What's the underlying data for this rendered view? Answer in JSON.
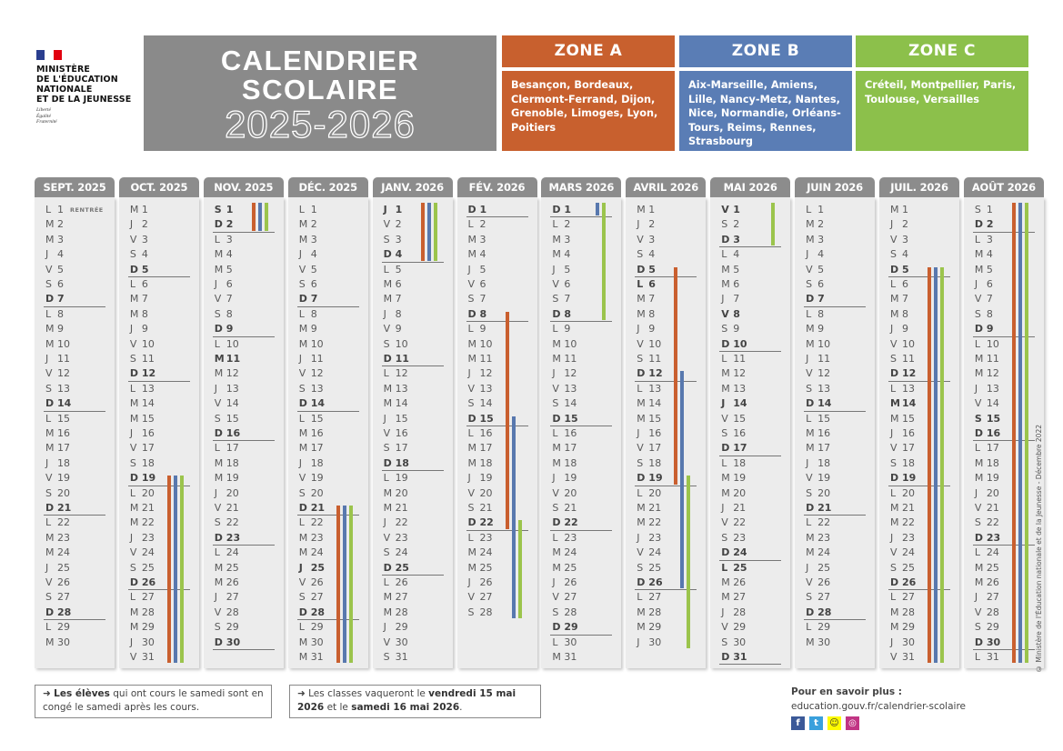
{
  "ministry": {
    "lines": [
      "MINISTÈRE",
      "DE L'ÉDUCATION",
      "NATIONALE",
      "ET DE LA JEUNESSE"
    ],
    "motto": [
      "Liberté",
      "Égalité",
      "Fraternité"
    ]
  },
  "title": {
    "line1": "CALENDRIER",
    "line2": "SCOLAIRE",
    "years": "2025-2026"
  },
  "colors": {
    "zone_a": "#c8602e",
    "zone_b": "#5a7db5",
    "zone_c": "#8cc04b",
    "bar_a": "#c95f2f",
    "bar_b": "#5878ae",
    "bar_c": "#9bc44c"
  },
  "zones": [
    {
      "id": "a",
      "label": "ZONE A",
      "cities": "Besançon, Bordeaux, Clermont-Ferrand, Dijon, Grenoble, Limoges, Lyon, Poitiers"
    },
    {
      "id": "b",
      "label": "ZONE B",
      "cities": "Aix-Marseille, Amiens, Lille, Nancy-Metz, Nantes, Nice, Normandie, Orléans-Tours, Reims, Rennes, Strasbourg"
    },
    {
      "id": "c",
      "label": "ZONE C",
      "cities": "Créteil, Montpellier, Paris, Toulouse, Versailles"
    }
  ],
  "rentree_label": "RENTRÉE",
  "months": [
    {
      "label": "SEPT. 2025",
      "holidays": [],
      "bars": [],
      "days": [
        "L 1",
        "M 2",
        "M 3",
        "J 4",
        "V 5",
        "S 6",
        "D 7",
        "L 8",
        "M 9",
        "M 10",
        "J 11",
        "V 12",
        "S 13",
        "D 14",
        "L 15",
        "M 16",
        "M 17",
        "J 18",
        "V 19",
        "S 20",
        "D 21",
        "L 22",
        "M 23",
        "M 24",
        "J 25",
        "V 26",
        "S 27",
        "D 28",
        "L 29",
        "M 30"
      ]
    },
    {
      "label": "OCT. 2025",
      "holidays": [],
      "bars": [
        {
          "zone": "a",
          "from": 19,
          "to": 31
        },
        {
          "zone": "b",
          "from": 19,
          "to": 31
        },
        {
          "zone": "c",
          "from": 19,
          "to": 31
        }
      ],
      "days": [
        "M 1",
        "J 2",
        "V 3",
        "S 4",
        "D 5",
        "L 6",
        "M 7",
        "M 8",
        "J 9",
        "V 10",
        "S 11",
        "D 12",
        "L 13",
        "M 14",
        "M 15",
        "J 16",
        "V 17",
        "S 18",
        "D 19",
        "L 20",
        "M 21",
        "M 22",
        "J 23",
        "V 24",
        "S 25",
        "D 26",
        "L 27",
        "M 28",
        "M 29",
        "J 30",
        "V 31"
      ]
    },
    {
      "label": "NOV. 2025",
      "holidays": [
        1,
        11
      ],
      "bars": [
        {
          "zone": "a",
          "from": 1,
          "to": 2
        },
        {
          "zone": "b",
          "from": 1,
          "to": 2
        },
        {
          "zone": "c",
          "from": 1,
          "to": 2
        }
      ],
      "days": [
        "S 1",
        "D 2",
        "L 3",
        "M 4",
        "M 5",
        "J 6",
        "V 7",
        "S 8",
        "D 9",
        "L 10",
        "M 11",
        "M 12",
        "J 13",
        "V 14",
        "S 15",
        "D 16",
        "L 17",
        "M 18",
        "M 19",
        "J 20",
        "V 21",
        "S 22",
        "D 23",
        "L 24",
        "M 25",
        "M 26",
        "J 27",
        "V 28",
        "S 29",
        "D 30"
      ]
    },
    {
      "label": "DÉC. 2025",
      "holidays": [
        25
      ],
      "bars": [
        {
          "zone": "a",
          "from": 21,
          "to": 31
        },
        {
          "zone": "b",
          "from": 21,
          "to": 31
        },
        {
          "zone": "c",
          "from": 21,
          "to": 31
        }
      ],
      "days": [
        "L 1",
        "M 2",
        "M 3",
        "J 4",
        "V 5",
        "S 6",
        "D 7",
        "L 8",
        "M 9",
        "M 10",
        "J 11",
        "V 12",
        "S 13",
        "D 14",
        "L 15",
        "M 16",
        "M 17",
        "J 18",
        "V 19",
        "S 20",
        "D 21",
        "L 22",
        "M 23",
        "M 24",
        "J 25",
        "V 26",
        "S 27",
        "D 28",
        "L 29",
        "M 30",
        "M 31"
      ]
    },
    {
      "label": "JANV. 2026",
      "holidays": [
        1
      ],
      "bars": [
        {
          "zone": "a",
          "from": 1,
          "to": 4
        },
        {
          "zone": "b",
          "from": 1,
          "to": 4
        },
        {
          "zone": "c",
          "from": 1,
          "to": 4
        }
      ],
      "days": [
        "J 1",
        "V 2",
        "S 3",
        "D 4",
        "L 5",
        "M 6",
        "M 7",
        "J 8",
        "V 9",
        "S 10",
        "D 11",
        "L 12",
        "M 13",
        "M 14",
        "J 15",
        "V 16",
        "S 17",
        "D 18",
        "L 19",
        "M 20",
        "M 21",
        "J 22",
        "V 23",
        "S 24",
        "D 25",
        "L 26",
        "M 27",
        "M 28",
        "J 29",
        "V 30",
        "S 31"
      ]
    },
    {
      "label": "FÉV. 2026",
      "holidays": [],
      "bars": [
        {
          "zone": "a",
          "from": 8,
          "to": 22
        },
        {
          "zone": "b",
          "from": 15,
          "to": 28
        },
        {
          "zone": "c",
          "from": 22,
          "to": 28
        }
      ],
      "days": [
        "D 1",
        "L 2",
        "M 3",
        "M 4",
        "J 5",
        "V 6",
        "S 7",
        "D 8",
        "L 9",
        "M 10",
        "M 11",
        "J 12",
        "V 13",
        "S 14",
        "D 15",
        "L 16",
        "M 17",
        "M 18",
        "J 19",
        "V 20",
        "S 21",
        "D 22",
        "L 23",
        "M 24",
        "M 25",
        "J 26",
        "V 27",
        "S 28"
      ]
    },
    {
      "label": "MARS 2026",
      "holidays": [],
      "bars": [
        {
          "zone": "b",
          "from": 1,
          "to": 1
        },
        {
          "zone": "c",
          "from": 1,
          "to": 8
        }
      ],
      "days": [
        "D 1",
        "L 2",
        "M 3",
        "M 4",
        "J 5",
        "V 6",
        "S 7",
        "D 8",
        "L 9",
        "M 10",
        "M 11",
        "J 12",
        "V 13",
        "S 14",
        "D 15",
        "L 16",
        "M 17",
        "M 18",
        "J 19",
        "V 20",
        "S 21",
        "D 22",
        "L 23",
        "M 24",
        "M 25",
        "J 26",
        "V 27",
        "S 28",
        "D 29",
        "L 30",
        "M 31"
      ]
    },
    {
      "label": "AVRIL 2026",
      "holidays": [
        6
      ],
      "bars": [
        {
          "zone": "a",
          "from": 5,
          "to": 19
        },
        {
          "zone": "b",
          "from": 12,
          "to": 26
        },
        {
          "zone": "c",
          "from": 19,
          "to": 30
        }
      ],
      "days": [
        "M 1",
        "J 2",
        "V 3",
        "S 4",
        "D 5",
        "L 6",
        "M 7",
        "M 8",
        "J 9",
        "V 10",
        "S 11",
        "D 12",
        "L 13",
        "M 14",
        "M 15",
        "J 16",
        "V 17",
        "S 18",
        "D 19",
        "L 20",
        "M 21",
        "M 22",
        "J 23",
        "V 24",
        "S 25",
        "D 26",
        "L 27",
        "M 28",
        "M 29",
        "J 30"
      ]
    },
    {
      "label": "MAI 2026",
      "holidays": [
        1,
        8,
        14,
        25
      ],
      "bars": [
        {
          "zone": "c",
          "from": 1,
          "to": 3
        }
      ],
      "days": [
        "V 1",
        "S 2",
        "D 3",
        "L 4",
        "M 5",
        "M 6",
        "J 7",
        "V 8",
        "S 9",
        "D 10",
        "L 11",
        "M 12",
        "M 13",
        "J 14",
        "V 15",
        "S 16",
        "D 17",
        "L 18",
        "M 19",
        "M 20",
        "J 21",
        "V 22",
        "S 23",
        "D 24",
        "L 25",
        "M 26",
        "M 27",
        "J 28",
        "V 29",
        "S 30",
        "D 31"
      ]
    },
    {
      "label": "JUIN 2026",
      "holidays": [],
      "bars": [],
      "days": [
        "L 1",
        "M 2",
        "M 3",
        "J 4",
        "V 5",
        "S 6",
        "D 7",
        "L 8",
        "M 9",
        "M 10",
        "J 11",
        "V 12",
        "S 13",
        "D 14",
        "L 15",
        "M 16",
        "M 17",
        "J 18",
        "V 19",
        "S 20",
        "D 21",
        "L 22",
        "M 23",
        "M 24",
        "J 25",
        "V 26",
        "S 27",
        "D 28",
        "L 29",
        "M 30"
      ]
    },
    {
      "label": "JUIL. 2026",
      "holidays": [
        14
      ],
      "bars": [
        {
          "zone": "a",
          "from": 5,
          "to": 31
        },
        {
          "zone": "b",
          "from": 5,
          "to": 31
        },
        {
          "zone": "c",
          "from": 5,
          "to": 31
        }
      ],
      "days": [
        "M 1",
        "J 2",
        "V 3",
        "S 4",
        "D 5",
        "L 6",
        "M 7",
        "M 8",
        "J 9",
        "V 10",
        "S 11",
        "D 12",
        "L 13",
        "M 14",
        "M 15",
        "J 16",
        "V 17",
        "S 18",
        "D 19",
        "L 20",
        "M 21",
        "M 22",
        "J 23",
        "V 24",
        "S 25",
        "D 26",
        "L 27",
        "M 28",
        "M 29",
        "J 30",
        "V 31"
      ]
    },
    {
      "label": "AOÛT 2026",
      "holidays": [
        15
      ],
      "bars": [
        {
          "zone": "a",
          "from": 1,
          "to": 31
        },
        {
          "zone": "b",
          "from": 1,
          "to": 31
        },
        {
          "zone": "c",
          "from": 1,
          "to": 31
        }
      ],
      "days": [
        "S 1",
        "D 2",
        "L 3",
        "M 4",
        "M 5",
        "J 6",
        "V 7",
        "S 8",
        "D 9",
        "L 10",
        "M 11",
        "M 12",
        "J 13",
        "V 14",
        "S 15",
        "D 16",
        "L 17",
        "M 18",
        "M 19",
        "J 20",
        "V 21",
        "S 22",
        "D 23",
        "L 24",
        "M 25",
        "M 26",
        "J 27",
        "V 28",
        "S 29",
        "D 30",
        "L 31"
      ]
    }
  ],
  "notes": [
    {
      "bold1": "Les élèves",
      "text1": " qui ont cours le samedi sont en congé le samedi après les cours."
    },
    {
      "text0": "Les classes vaqueront le ",
      "bold1": "vendredi 15 mai 2026",
      "text1": " et le ",
      "bold2": "samedi 16 mai 2026",
      "text2": "."
    }
  ],
  "more": {
    "label": "Pour en savoir plus :",
    "link": "education.gouv.fr/calendrier-scolaire",
    "social": [
      "facebook",
      "twitter",
      "snapchat",
      "instagram"
    ]
  },
  "copyright": "© Ministère de l'Éducation nationale et de la Jeunesse - Décembre 2022"
}
